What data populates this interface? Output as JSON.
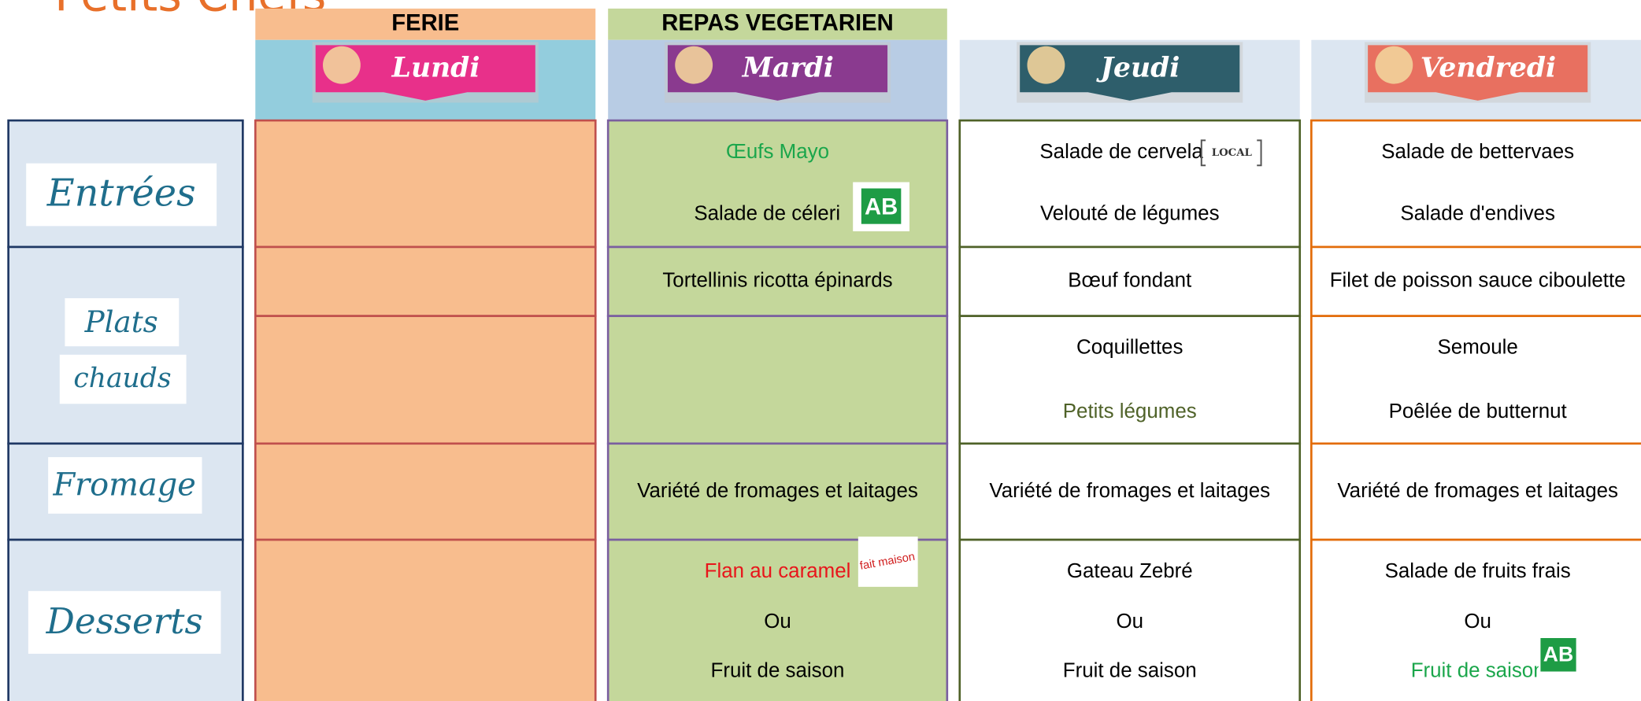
{
  "header": {
    "title": "Petits Chefs"
  },
  "sections": [
    "Entrées",
    "Plats",
    "chauds",
    "Fromage",
    "Desserts"
  ],
  "badges": {
    "local": "LOCAL",
    "ab": "AB",
    "maison": "fait maison"
  },
  "columns": [
    {
      "banner": "FERIE",
      "day": "Lundi",
      "cells": [
        [],
        [],
        [],
        [],
        []
      ]
    },
    {
      "banner": "REPAS VEGETARIEN",
      "day": "Mardi",
      "cells": [
        [
          {
            "text": "Œufs Mayo",
            "color": "#1aa64b"
          },
          {
            "text": "Salade de céleri"
          }
        ],
        [
          {
            "text": "Tortellinis ricotta épinards"
          }
        ],
        [],
        [
          {
            "text": "Variété de fromages et laitages"
          }
        ],
        [
          {
            "text": "Flan au caramel",
            "color": "#e8151b"
          },
          {
            "text": "Ou"
          },
          {
            "text": "Fruit de saison"
          }
        ]
      ]
    },
    {
      "day": "Jeudi",
      "cells": [
        [
          {
            "text": "Salade de cervela"
          },
          {
            "text": "Velouté de légumes"
          }
        ],
        [
          {
            "text": "Bœuf fondant"
          }
        ],
        [
          {
            "text": "Coquillettes"
          },
          {
            "text": "Petits légumes",
            "color": "#4f6228"
          }
        ],
        [
          {
            "text": "Variété de fromages et laitages"
          }
        ],
        [
          {
            "text": "Gateau Zebré"
          },
          {
            "text": "Ou"
          },
          {
            "text": "Fruit de saison"
          }
        ]
      ]
    },
    {
      "day": "Vendredi",
      "cells": [
        [
          {
            "text": "Salade de bettervaes"
          },
          {
            "text": "Salade d'endives"
          }
        ],
        [
          {
            "text": "Filet de poisson sauce ciboulette"
          }
        ],
        [
          {
            "text": "Semoule"
          },
          {
            "text": "Poêlée de butternut"
          }
        ],
        [
          {
            "text": "Variété de fromages et laitages"
          }
        ],
        [
          {
            "text": "Salade de fruits frais"
          },
          {
            "text": "Ou"
          },
          {
            "text": "Fruit de saison",
            "color": "#1aa64b"
          }
        ]
      ]
    }
  ]
}
